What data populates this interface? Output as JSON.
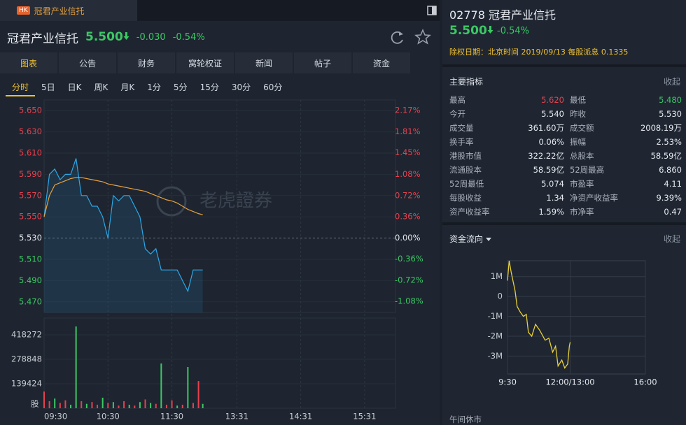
{
  "tab": {
    "badge": "HK",
    "title": "冠君产业信托"
  },
  "header": {
    "name": "冠君产业信托",
    "price": "5.500",
    "change": "-0.030",
    "change_pct": "-0.54%"
  },
  "tabs": [
    "图表",
    "公告",
    "财务",
    "窝轮权证",
    "新闻",
    "帖子",
    "资金"
  ],
  "periods": [
    "分时",
    "5日",
    "日K",
    "周K",
    "月K",
    "1分",
    "5分",
    "15分",
    "30分",
    "60分"
  ],
  "price_chart": {
    "type": "line",
    "watermark": "老虎證券",
    "x": [
      0,
      5,
      10,
      15,
      20,
      25,
      30,
      35,
      40,
      45,
      50,
      55,
      60,
      65,
      70,
      75,
      80,
      85,
      90,
      95,
      100,
      105,
      110,
      115,
      120,
      125,
      130,
      135,
      140,
      145,
      149
    ],
    "xlim": [
      0,
      330
    ],
    "xticks": [
      {
        "value": 0,
        "label": "09:30"
      },
      {
        "value": 60,
        "label": "10:30"
      },
      {
        "value": 120,
        "label": "11:30"
      },
      {
        "value": 181,
        "label": "13:31"
      },
      {
        "value": 241,
        "label": "14:31"
      },
      {
        "value": 301,
        "label": "15:31"
      }
    ],
    "ylim": [
      5.46,
      5.66
    ],
    "yticks": [
      {
        "value": 5.65,
        "label": "5.650"
      },
      {
        "value": 5.63,
        "label": "5.630"
      },
      {
        "value": 5.61,
        "label": "5.610"
      },
      {
        "value": 5.59,
        "label": "5.590"
      },
      {
        "value": 5.57,
        "label": "5.570"
      },
      {
        "value": 5.55,
        "label": "5.550"
      },
      {
        "value": 5.53,
        "label": "5.530"
      },
      {
        "value": 5.51,
        "label": "5.510"
      },
      {
        "value": 5.49,
        "label": "5.490"
      },
      {
        "value": 5.47,
        "label": "5.470"
      }
    ],
    "y2lim": [
      -1.27,
      2.35
    ],
    "y2ticks": [
      {
        "value": 2.17,
        "label": "2.17%"
      },
      {
        "value": 1.81,
        "label": "1.81%"
      },
      {
        "value": 1.45,
        "label": "1.45%"
      },
      {
        "value": 1.08,
        "label": "1.08%"
      },
      {
        "value": 0.72,
        "label": "0.72%"
      },
      {
        "value": 0.36,
        "label": "0.36%"
      },
      {
        "value": 0,
        "label": "0.00%"
      },
      {
        "value": -0.36,
        "label": "-0.36%"
      },
      {
        "value": -0.72,
        "label": "-0.72%"
      },
      {
        "value": -1.08,
        "label": "-1.08%"
      }
    ],
    "series": [
      {
        "color": "#2aa8e8",
        "values": [
          5.55,
          5.59,
          5.595,
          5.585,
          5.59,
          5.59,
          5.605,
          5.57,
          5.57,
          5.56,
          5.56,
          5.55,
          5.53,
          5.57,
          5.565,
          5.57,
          5.57,
          5.56,
          5.55,
          5.52,
          5.515,
          5.52,
          5.5,
          5.5,
          5.5,
          5.5,
          5.49,
          5.48,
          5.5,
          5.5,
          5.5
        ]
      },
      {
        "color": "#e8a03c",
        "values": [
          5.55,
          5.57,
          5.58,
          5.582,
          5.584,
          5.586,
          5.587,
          5.587,
          5.586,
          5.585,
          5.584,
          5.583,
          5.581,
          5.58,
          5.579,
          5.578,
          5.577,
          5.576,
          5.575,
          5.574,
          5.572,
          5.57,
          5.568,
          5.566,
          5.565,
          5.563,
          5.56,
          5.557,
          5.555,
          5.553,
          5.552
        ]
      }
    ]
  },
  "volume_chart": {
    "type": "bar",
    "unit": "股",
    "x": [
      0,
      5,
      10,
      15,
      20,
      25,
      30,
      35,
      40,
      45,
      50,
      55,
      60,
      65,
      70,
      75,
      80,
      85,
      90,
      95,
      100,
      105,
      110,
      115,
      120,
      125,
      130,
      135,
      140,
      145,
      149
    ],
    "values": [
      95000,
      40000,
      55000,
      30000,
      45000,
      20000,
      466000,
      40000,
      25000,
      35000,
      20000,
      60000,
      30000,
      35000,
      15000,
      40000,
      20000,
      15000,
      35000,
      50000,
      30000,
      25000,
      255000,
      20000,
      45000,
      15000,
      20000,
      235000,
      30000,
      155000,
      25000
    ],
    "colors": [
      "#e8414e",
      "#e8414e",
      "#3cc864",
      "#e8414e",
      "#e8414e",
      "#3cc864",
      "#3cc864",
      "#e8414e",
      "#3cc864",
      "#e8414e",
      "#e8414e",
      "#3cc864",
      "#e8414e",
      "#3cc864",
      "#e8414e",
      "#e8414e",
      "#3cc864",
      "#e8414e",
      "#3cc864",
      "#e8414e",
      "#3cc864",
      "#e8414e",
      "#3cc864",
      "#e8414e",
      "#e8414e",
      "#3cc864",
      "#e8414e",
      "#3cc864",
      "#e8414e",
      "#e8414e",
      "#3cc864"
    ],
    "xlim": [
      0,
      330
    ],
    "ylim": [
      0,
      514000
    ],
    "yticks": [
      139424,
      278848,
      418272
    ]
  },
  "quote_panel": {
    "code": "02778",
    "name": "冠君产业信托",
    "price": "5.500",
    "change_pct": "-0.54%",
    "dividend": "除权日期：北京时间 2019/09/13 每股派息 0.1335"
  },
  "key_metrics": {
    "title": "主要指标",
    "collapse": "收起",
    "rows": [
      [
        {
          "label": "最高",
          "value": "5.620"
        },
        {
          "label": "最低",
          "value": "5.480"
        }
      ],
      [
        {
          "label": "今开",
          "value": "5.540"
        },
        {
          "label": "昨收",
          "value": "5.530"
        }
      ],
      [
        {
          "label": "成交量",
          "value": "361.60万"
        },
        {
          "label": "成交额",
          "value": "2008.19万"
        }
      ],
      [
        {
          "label": "换手率",
          "value": "0.06%"
        },
        {
          "label": "振幅",
          "value": "2.53%"
        }
      ],
      [
        {
          "label": "港股市值",
          "value": "322.22亿"
        },
        {
          "label": "总股本",
          "value": "58.59亿"
        }
      ],
      [
        {
          "label": "流通股本",
          "value": "58.59亿"
        },
        {
          "label": "52周最高",
          "value": "6.860"
        }
      ],
      [
        {
          "label": "52周最低",
          "value": "5.074"
        },
        {
          "label": "市盈率",
          "value": "4.11"
        }
      ],
      [
        {
          "label": "每股收益",
          "value": "1.34"
        },
        {
          "label": "净资产收益率",
          "value": "9.39%"
        }
      ],
      [
        {
          "label": "资产收益率",
          "value": "1.59%"
        },
        {
          "label": "市净率",
          "value": "0.47"
        }
      ]
    ]
  },
  "fund_flow": {
    "type": "line",
    "title": "资金流向",
    "collapse": "收起",
    "note": "午间休市",
    "color": "#e8d03a",
    "x": [
      0,
      4,
      9,
      18,
      23,
      31,
      38,
      45,
      50,
      58,
      67,
      77,
      90,
      99,
      108,
      115,
      121,
      130,
      137,
      144,
      148,
      150
    ],
    "values": [
      800000,
      1800000,
      1200000,
      300000,
      -500000,
      -800000,
      -1000000,
      -900000,
      -1800000,
      -2000000,
      -1400000,
      -1700000,
      -2200000,
      -2100000,
      -2800000,
      -2500000,
      -3500000,
      -3200000,
      -3600000,
      -3400000,
      -2500000,
      -2300000
    ],
    "xlim": [
      0,
      330
    ],
    "xticks": [
      {
        "value": 0,
        "label": "9:30"
      },
      {
        "value": 150,
        "label": "12:00/13:00"
      },
      {
        "value": 330,
        "label": "16:00"
      }
    ],
    "ylim": [
      -3900000,
      1800000
    ],
    "yticks": [
      {
        "value": 1000000,
        "label": "1M"
      },
      0,
      {
        "value": -1000000,
        "label": "-1M"
      },
      {
        "value": -2000000,
        "label": "-2M"
      },
      {
        "value": -3000000,
        "label": "-3M"
      }
    ]
  }
}
